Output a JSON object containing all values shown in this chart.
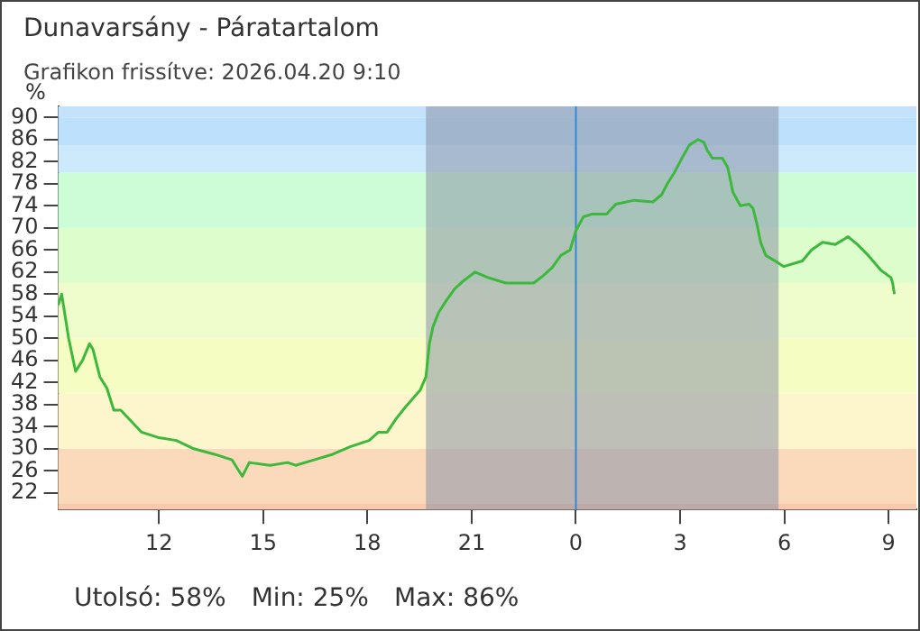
{
  "chart_data": {
    "type": "line",
    "title": "Dunavarsány - Páratartalom",
    "subtitle": "Grafikon frissítve: 2026.04.20 9:10",
    "ylabel": "%",
    "annotations": [
      "Utolsó: 58%",
      "Min: 25%",
      "Max: 86%"
    ],
    "x": [
      "2026-04-19T09:06",
      "2026-04-19T09:12",
      "2026-04-19T09:18",
      "2026-04-19T09:24",
      "2026-04-19T09:30",
      "2026-04-19T09:36",
      "2026-04-19T09:48",
      "2026-04-19T10:00",
      "2026-04-19T10:06",
      "2026-04-19T10:18",
      "2026-04-19T10:30",
      "2026-04-19T10:42",
      "2026-04-19T10:54",
      "2026-04-19T11:12",
      "2026-04-19T11:30",
      "2026-04-19T12:00",
      "2026-04-19T12:30",
      "2026-04-19T13:00",
      "2026-04-19T13:36",
      "2026-04-19T14:06",
      "2026-04-19T14:24",
      "2026-04-19T14:36",
      "2026-04-19T15:12",
      "2026-04-19T15:42",
      "2026-04-19T15:56",
      "2026-04-19T16:28",
      "2026-04-19T17:00",
      "2026-04-19T17:31",
      "2026-04-19T18:03",
      "2026-04-19T18:19",
      "2026-04-19T18:34",
      "2026-04-19T18:50",
      "2026-04-19T19:06",
      "2026-04-19T19:22",
      "2026-04-19T19:31",
      "2026-04-19T19:41",
      "2026-04-19T19:47",
      "2026-04-19T19:53",
      "2026-04-19T20:03",
      "2026-04-19T20:16",
      "2026-04-19T20:31",
      "2026-04-19T20:47",
      "2026-04-19T21:06",
      "2026-04-19T21:28",
      "2026-04-19T21:59",
      "2026-04-19T22:47",
      "2026-04-19T23:03",
      "2026-04-19T23:19",
      "2026-04-19T23:34",
      "2026-04-19T23:50",
      "2026-04-20T00:00",
      "2026-04-20T00:13",
      "2026-04-20T00:28",
      "2026-04-20T00:53",
      "2026-04-20T01:09",
      "2026-04-20T01:41",
      "2026-04-20T02:13",
      "2026-04-20T02:28",
      "2026-04-20T02:38",
      "2026-04-20T02:50",
      "2026-04-20T03:03",
      "2026-04-20T03:16",
      "2026-04-20T03:31",
      "2026-04-20T03:41",
      "2026-04-20T03:47",
      "2026-04-20T03:56",
      "2026-04-20T04:13",
      "2026-04-20T04:22",
      "2026-04-20T04:25",
      "2026-04-20T04:31",
      "2026-04-20T04:44",
      "2026-04-20T04:59",
      "2026-04-20T05:06",
      "2026-04-20T05:13",
      "2026-04-20T05:19",
      "2026-04-20T05:28",
      "2026-04-20T05:44",
      "2026-04-20T05:59",
      "2026-04-20T06:31",
      "2026-04-20T06:47",
      "2026-04-20T07:06",
      "2026-04-20T07:28",
      "2026-04-20T07:44",
      "2026-04-20T07:50",
      "2026-04-20T08:06",
      "2026-04-20T08:25",
      "2026-04-20T08:47",
      "2026-04-20T09:04",
      "2026-04-20T09:07",
      "2026-04-20T09:10"
    ],
    "series": [
      {
        "color": "#3cb83c",
        "values": [
          56,
          58,
          54,
          50,
          47,
          44,
          46,
          49,
          48,
          43,
          41,
          37,
          37,
          35,
          33,
          32,
          31.5,
          30,
          29,
          28,
          25,
          27.5,
          27,
          27.5,
          27,
          28,
          29,
          30.4,
          31.5,
          33,
          33,
          35.5,
          37.6,
          39.5,
          40.6,
          43,
          49,
          52,
          54.7,
          56.8,
          59,
          60.5,
          62,
          61,
          60,
          60,
          61.3,
          62.8,
          65,
          66,
          69.5,
          72,
          72.5,
          72.5,
          74.3,
          75,
          74.7,
          76,
          78,
          80,
          82.6,
          85,
          86,
          85.5,
          84,
          82.6,
          82.6,
          81,
          79.6,
          76.5,
          74,
          74.3,
          73.5,
          70.5,
          67.4,
          65,
          64,
          63,
          64,
          66,
          67.4,
          67,
          68,
          68.4,
          67,
          65,
          62.3,
          61,
          60,
          58
        ]
      }
    ],
    "xlim": [
      "2026-04-19T09:06",
      "2026-04-20T09:48"
    ],
    "xticks": [
      {
        "value": "2026-04-19T12:00",
        "label": "12"
      },
      {
        "value": "2026-04-19T15:00",
        "label": "15"
      },
      {
        "value": "2026-04-19T18:00",
        "label": "18"
      },
      {
        "value": "2026-04-19T21:00",
        "label": "21"
      },
      {
        "value": "2026-04-20T00:00",
        "label": "0"
      },
      {
        "value": "2026-04-20T03:00",
        "label": "3"
      },
      {
        "value": "2026-04-20T06:00",
        "label": "6"
      },
      {
        "value": "2026-04-20T09:00",
        "label": "9"
      }
    ],
    "ylim": [
      19,
      92
    ],
    "yticks": [
      22,
      26,
      30,
      34,
      38,
      42,
      46,
      50,
      54,
      58,
      62,
      66,
      70,
      74,
      78,
      82,
      86,
      90
    ],
    "bands": [
      {
        "axis": "y",
        "from": 19,
        "to": 20,
        "color": "#fbc8b0"
      },
      {
        "axis": "y",
        "from": 20,
        "to": 30,
        "color": "#fbdabc"
      },
      {
        "axis": "y",
        "from": 30,
        "to": 40,
        "color": "#fdf5cc"
      },
      {
        "axis": "y",
        "from": 40,
        "to": 50,
        "color": "#f5fdc2"
      },
      {
        "axis": "y",
        "from": 50,
        "to": 60,
        "color": "#effdcc"
      },
      {
        "axis": "y",
        "from": 60,
        "to": 70,
        "color": "#ddfdcc"
      },
      {
        "axis": "y",
        "from": 70,
        "to": 80,
        "color": "#ccfdd6"
      },
      {
        "axis": "y",
        "from": 80,
        "to": 85,
        "color": "#cde9fc"
      },
      {
        "axis": "y",
        "from": 85,
        "to": 90,
        "color": "#bde0fc"
      },
      {
        "axis": "y",
        "from": 90,
        "to": 92,
        "color": "#c4e2fc"
      },
      {
        "axis": "x",
        "from": "2026-04-19T19:41",
        "to": "2026-04-20T05:50",
        "color": "#8a93a6"
      }
    ],
    "ref_lines": [
      {
        "axis": "x",
        "value": "2026-04-20T00:00",
        "color": "#2a8ae0"
      }
    ],
    "grid": false,
    "legend": false,
    "marker": "none",
    "line_style": "solid"
  }
}
